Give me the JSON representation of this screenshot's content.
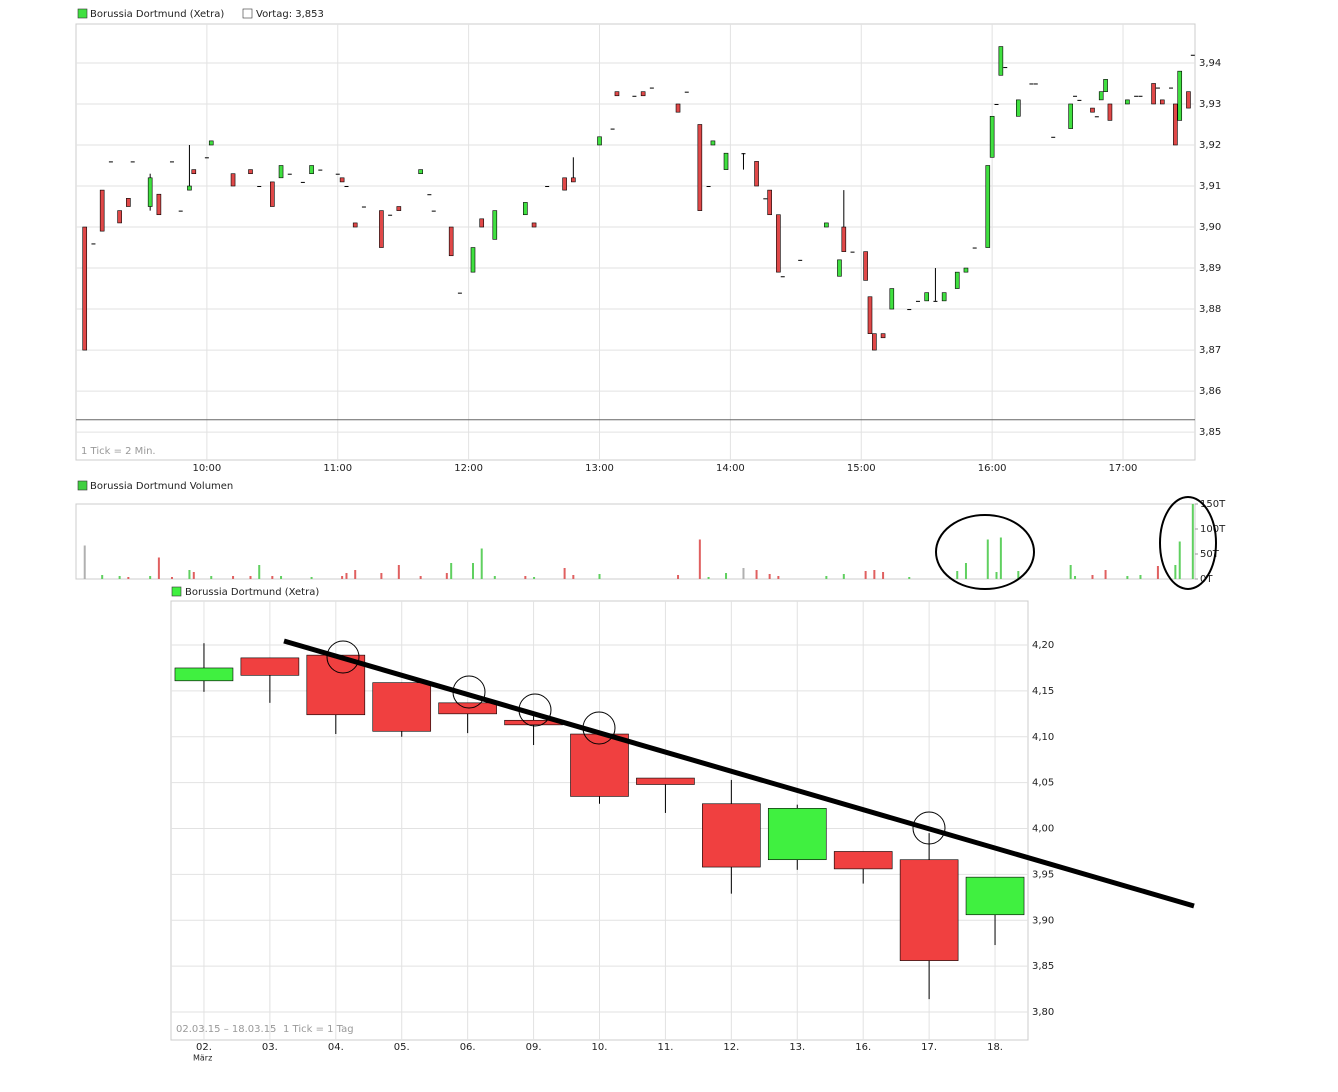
{
  "chart_data": [
    {
      "type": "candlestick",
      "title": "Borussia Dortmund (Xetra)",
      "reference_label": "Vortag: 3,853",
      "reference": 3.853,
      "notes": [
        "1 Tick = 2 Min."
      ],
      "up_color": "#40e040",
      "down_color": "#e04848",
      "grid": true,
      "xlim": [
        540,
        1053
      ],
      "xticks": [
        {
          "value": 600,
          "label": "10:00"
        },
        {
          "value": 660,
          "label": "11:00"
        },
        {
          "value": 720,
          "label": "12:00"
        },
        {
          "value": 780,
          "label": "13:00"
        },
        {
          "value": 840,
          "label": "14:00"
        },
        {
          "value": 900,
          "label": "15:00"
        },
        {
          "value": 960,
          "label": "16:00"
        },
        {
          "value": 1020,
          "label": "17:00"
        }
      ],
      "ylim": [
        3.8432,
        3.9495
      ],
      "yticks": [
        {
          "value": 3.85,
          "label": "3,85"
        },
        {
          "value": 3.86,
          "label": "3,86"
        },
        {
          "value": 3.87,
          "label": "3,87"
        },
        {
          "value": 3.88,
          "label": "3,88"
        },
        {
          "value": 3.89,
          "label": "3,89"
        },
        {
          "value": 3.9,
          "label": "3,90"
        },
        {
          "value": 3.91,
          "label": "3,91"
        },
        {
          "value": 3.92,
          "label": "3,92"
        },
        {
          "value": 3.93,
          "label": "3,93"
        },
        {
          "value": 3.94,
          "label": "3,94"
        }
      ],
      "x": [
        544,
        548,
        552,
        556,
        560,
        564,
        566,
        574,
        578,
        584,
        588,
        592,
        594,
        600,
        602,
        612,
        620,
        624,
        630,
        634,
        638,
        644,
        648,
        652,
        660,
        662,
        664,
        668,
        672,
        680,
        684,
        688,
        698,
        702,
        704,
        712,
        716,
        722,
        726,
        732,
        746,
        750,
        756,
        764,
        768,
        780,
        786,
        788,
        796,
        800,
        804,
        816,
        820,
        826,
        830,
        832,
        838,
        846,
        852,
        856,
        858,
        862,
        864,
        872,
        884,
        890,
        892,
        896,
        902,
        904,
        906,
        910,
        914,
        922,
        926,
        930,
        934,
        938,
        944,
        948,
        952,
        958,
        960,
        962,
        964,
        966,
        972,
        978,
        980,
        988,
        996,
        998,
        1000,
        1006,
        1008,
        1010,
        1012,
        1014,
        1022,
        1026,
        1028,
        1034,
        1036,
        1038,
        1042,
        1044,
        1046,
        1050,
        1052
      ],
      "open": [
        3.9,
        3.896,
        3.909,
        3.916,
        3.904,
        3.907,
        3.916,
        3.905,
        3.908,
        3.916,
        3.904,
        3.909,
        3.914,
        3.917,
        3.92,
        3.913,
        3.914,
        3.91,
        3.911,
        3.912,
        3.913,
        3.911,
        3.913,
        3.914,
        3.913,
        3.912,
        3.91,
        3.901,
        3.905,
        3.904,
        3.903,
        3.905,
        3.913,
        3.908,
        3.904,
        3.9,
        3.884,
        3.889,
        3.902,
        3.897,
        3.903,
        3.901,
        3.91,
        3.912,
        3.912,
        3.92,
        3.924,
        3.933,
        3.932,
        3.933,
        3.934,
        3.93,
        3.933,
        3.925,
        3.91,
        3.92,
        3.914,
        3.918,
        3.916,
        3.907,
        3.909,
        3.903,
        3.888,
        3.892,
        3.9,
        3.888,
        3.9,
        3.894,
        3.894,
        3.883,
        3.874,
        3.874,
        3.88,
        3.88,
        3.882,
        3.882,
        3.882,
        3.882,
        3.885,
        3.889,
        3.895,
        3.895,
        3.917,
        3.93,
        3.937,
        3.939,
        3.927,
        3.935,
        3.935,
        3.922,
        3.924,
        3.932,
        3.931,
        3.929,
        3.927,
        3.931,
        3.933,
        3.93,
        3.93,
        3.932,
        3.932,
        3.935,
        3.934,
        3.931,
        3.934,
        3.93,
        3.926,
        3.933,
        3.942
      ],
      "high": [
        3.9,
        3.896,
        3.909,
        3.916,
        3.904,
        3.907,
        3.916,
        3.913,
        3.908,
        3.916,
        3.904,
        3.92,
        3.914,
        3.917,
        3.921,
        3.913,
        3.914,
        3.91,
        3.911,
        3.915,
        3.913,
        3.911,
        3.915,
        3.914,
        3.913,
        3.912,
        3.91,
        3.901,
        3.905,
        3.904,
        3.903,
        3.905,
        3.914,
        3.908,
        3.904,
        3.9,
        3.884,
        3.895,
        3.902,
        3.904,
        3.906,
        3.901,
        3.91,
        3.912,
        3.917,
        3.922,
        3.924,
        3.933,
        3.932,
        3.933,
        3.934,
        3.93,
        3.933,
        3.925,
        3.91,
        3.921,
        3.918,
        3.918,
        3.916,
        3.907,
        3.909,
        3.903,
        3.888,
        3.892,
        3.901,
        3.892,
        3.909,
        3.894,
        3.894,
        3.883,
        3.874,
        3.874,
        3.885,
        3.88,
        3.882,
        3.884,
        3.89,
        3.884,
        3.889,
        3.89,
        3.895,
        3.915,
        3.927,
        3.93,
        3.944,
        3.939,
        3.931,
        3.935,
        3.935,
        3.922,
        3.93,
        3.932,
        3.931,
        3.929,
        3.927,
        3.933,
        3.936,
        3.93,
        3.931,
        3.932,
        3.932,
        3.935,
        3.934,
        3.931,
        3.934,
        3.93,
        3.938,
        3.933,
        3.942
      ],
      "low": [
        3.87,
        3.896,
        3.899,
        3.916,
        3.901,
        3.905,
        3.916,
        3.904,
        3.903,
        3.916,
        3.904,
        3.909,
        3.913,
        3.917,
        3.92,
        3.91,
        3.913,
        3.91,
        3.905,
        3.912,
        3.913,
        3.911,
        3.913,
        3.914,
        3.913,
        3.911,
        3.91,
        3.9,
        3.905,
        3.895,
        3.903,
        3.904,
        3.913,
        3.908,
        3.904,
        3.893,
        3.884,
        3.889,
        3.9,
        3.897,
        3.903,
        3.9,
        3.91,
        3.909,
        3.911,
        3.92,
        3.924,
        3.932,
        3.932,
        3.932,
        3.934,
        3.928,
        3.933,
        3.904,
        3.91,
        3.92,
        3.914,
        3.914,
        3.91,
        3.907,
        3.903,
        3.889,
        3.888,
        3.892,
        3.9,
        3.888,
        3.894,
        3.894,
        3.887,
        3.874,
        3.87,
        3.873,
        3.88,
        3.88,
        3.882,
        3.882,
        3.882,
        3.882,
        3.885,
        3.889,
        3.895,
        3.895,
        3.917,
        3.93,
        3.937,
        3.939,
        3.927,
        3.935,
        3.935,
        3.922,
        3.924,
        3.932,
        3.931,
        3.928,
        3.927,
        3.931,
        3.933,
        3.926,
        3.93,
        3.932,
        3.932,
        3.93,
        3.934,
        3.93,
        3.934,
        3.92,
        3.926,
        3.929,
        3.942
      ],
      "close": [
        3.87,
        3.896,
        3.899,
        3.916,
        3.901,
        3.905,
        3.916,
        3.912,
        3.903,
        3.916,
        3.904,
        3.91,
        3.913,
        3.917,
        3.921,
        3.91,
        3.913,
        3.91,
        3.905,
        3.915,
        3.913,
        3.911,
        3.915,
        3.914,
        3.913,
        3.911,
        3.91,
        3.9,
        3.905,
        3.895,
        3.903,
        3.904,
        3.914,
        3.908,
        3.904,
        3.893,
        3.884,
        3.895,
        3.9,
        3.904,
        3.906,
        3.9,
        3.91,
        3.909,
        3.911,
        3.922,
        3.924,
        3.932,
        3.932,
        3.932,
        3.934,
        3.928,
        3.933,
        3.904,
        3.91,
        3.921,
        3.918,
        3.918,
        3.91,
        3.907,
        3.903,
        3.889,
        3.888,
        3.892,
        3.901,
        3.892,
        3.894,
        3.894,
        3.887,
        3.874,
        3.87,
        3.873,
        3.885,
        3.88,
        3.882,
        3.884,
        3.882,
        3.884,
        3.889,
        3.89,
        3.895,
        3.915,
        3.927,
        3.93,
        3.944,
        3.939,
        3.931,
        3.935,
        3.935,
        3.922,
        3.93,
        3.932,
        3.931,
        3.928,
        3.927,
        3.933,
        3.936,
        3.926,
        3.931,
        3.932,
        3.932,
        3.93,
        3.934,
        3.93,
        3.934,
        3.92,
        3.938,
        3.929,
        3.942
      ]
    },
    {
      "type": "bar",
      "title": "Borussia Dortmund Volumen",
      "grid": false,
      "xlim": [
        540,
        1053
      ],
      "ylim": [
        0,
        150000
      ],
      "yticks": [
        {
          "value": 0,
          "label": "0T"
        },
        {
          "value": 50000,
          "label": "50T"
        },
        {
          "value": 100000,
          "label": "100T"
        },
        {
          "value": 150000,
          "label": "150T"
        }
      ],
      "x": [
        544,
        552,
        560,
        564,
        574,
        578,
        584,
        592,
        594,
        602,
        612,
        620,
        624,
        630,
        634,
        648,
        662,
        664,
        668,
        680,
        688,
        698,
        710,
        712,
        722,
        726,
        732,
        746,
        750,
        764,
        768,
        780,
        816,
        826,
        830,
        838,
        846,
        852,
        858,
        862,
        884,
        892,
        902,
        906,
        910,
        922,
        944,
        948,
        958,
        962,
        964,
        972,
        996,
        998,
        1006,
        1012,
        1022,
        1028,
        1036,
        1044,
        1046,
        1052
      ],
      "values": [
        67000,
        8000,
        6000,
        4000,
        6000,
        43000,
        4000,
        18000,
        14000,
        6000,
        6000,
        6000,
        28000,
        6000,
        6000,
        4000,
        6000,
        12000,
        18000,
        12000,
        28000,
        6000,
        12000,
        32000,
        32000,
        61000,
        6000,
        6000,
        4000,
        22000,
        8000,
        10000,
        8000,
        79000,
        4000,
        12000,
        22000,
        18000,
        10000,
        6000,
        6000,
        10000,
        16000,
        18000,
        14000,
        4000,
        16000,
        32000,
        79000,
        14000,
        83000,
        16000,
        28000,
        6000,
        8000,
        18000,
        6000,
        8000,
        26000,
        28000,
        75000,
        150000
      ],
      "colors": [
        "#b0b0b0",
        "#60d060",
        "#60d060",
        "#e06060",
        "#60d060",
        "#e06060",
        "#e06060",
        "#60d060",
        "#e06060",
        "#60d060",
        "#e06060",
        "#e06060",
        "#60d060",
        "#e06060",
        "#60d060",
        "#60d060",
        "#e06060",
        "#e06060",
        "#e06060",
        "#e06060",
        "#e06060",
        "#e06060",
        "#e06060",
        "#60d060",
        "#60d060",
        "#60d060",
        "#60d060",
        "#e06060",
        "#60d060",
        "#e06060",
        "#e06060",
        "#60d060",
        "#e06060",
        "#e06060",
        "#60d060",
        "#60d060",
        "#b0b0b0",
        "#e06060",
        "#e06060",
        "#e06060",
        "#60d060",
        "#60d060",
        "#e06060",
        "#e06060",
        "#e06060",
        "#60d060",
        "#60d060",
        "#60d060",
        "#60d060",
        "#60d060",
        "#60d060",
        "#60d060",
        "#60d060",
        "#60d060",
        "#e06060",
        "#e06060",
        "#60d060",
        "#60d060",
        "#e06060",
        "#60d060",
        "#60d060",
        "#60d060"
      ]
    },
    {
      "type": "candlestick",
      "title": "Borussia Dortmund (Xetra)",
      "notes": [
        "02.03.15 – 18.03.15",
        "1 Tick = 1 Tag"
      ],
      "x_sublabel": "März",
      "up_color": "#40f040",
      "down_color": "#f04040",
      "grid": true,
      "categories": [
        "02.",
        "03.",
        "04.",
        "05.",
        "06.",
        "09.",
        "10.",
        "11.",
        "12.",
        "13.",
        "16.",
        "17.",
        "18."
      ],
      "ylim": [
        3.7695,
        4.248
      ],
      "yticks": [
        {
          "value": 3.8,
          "label": "3,80"
        },
        {
          "value": 3.85,
          "label": "3,85"
        },
        {
          "value": 3.9,
          "label": "3,90"
        },
        {
          "value": 3.95,
          "label": "3,95"
        },
        {
          "value": 4.0,
          "label": "4,00"
        },
        {
          "value": 4.05,
          "label": "4,05"
        },
        {
          "value": 4.1,
          "label": "4,10"
        },
        {
          "value": 4.15,
          "label": "4,15"
        },
        {
          "value": 4.2,
          "label": "4,20"
        }
      ],
      "open": [
        4.161,
        4.186,
        4.189,
        4.159,
        4.137,
        4.118,
        4.103,
        4.055,
        4.027,
        3.966,
        3.975,
        3.966,
        3.906
      ],
      "high": [
        4.202,
        4.186,
        4.189,
        4.159,
        4.137,
        4.126,
        4.103,
        4.055,
        4.053,
        4.026,
        3.975,
        3.995,
        3.947
      ],
      "low": [
        4.149,
        4.137,
        4.103,
        4.1,
        4.104,
        4.091,
        4.027,
        4.017,
        3.929,
        3.955,
        3.94,
        3.814,
        3.873
      ],
      "close": [
        4.175,
        4.167,
        4.124,
        4.106,
        4.125,
        4.113,
        4.035,
        4.048,
        3.958,
        4.022,
        3.956,
        3.856,
        3.947
      ]
    }
  ]
}
